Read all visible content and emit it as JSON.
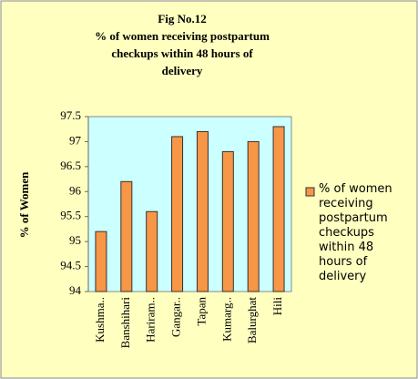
{
  "chart_data": {
    "type": "bar",
    "title": [
      "Fig No.12",
      "% of women receiving postpartum",
      "checkups within 48 hours of",
      "delivery"
    ],
    "y_label": "% of Women",
    "categories": [
      "Kushma..",
      "Banshihari",
      "Hariram..",
      "Gangar..",
      "Tapan",
      "Kumarg..",
      "Balurghat",
      "Hili"
    ],
    "series": [
      {
        "name": "% of women receiving postpartum checkups within 48 hours of delivery",
        "color": "#f79646",
        "values": [
          95.2,
          96.2,
          95.6,
          97.1,
          97.2,
          96.8,
          97.0,
          97.3
        ]
      }
    ],
    "ylim": [
      94,
      97.5
    ],
    "yticks": [
      94,
      94.5,
      95,
      95.5,
      96,
      96.5,
      97,
      97.5
    ],
    "grid": false,
    "legend": "right"
  }
}
